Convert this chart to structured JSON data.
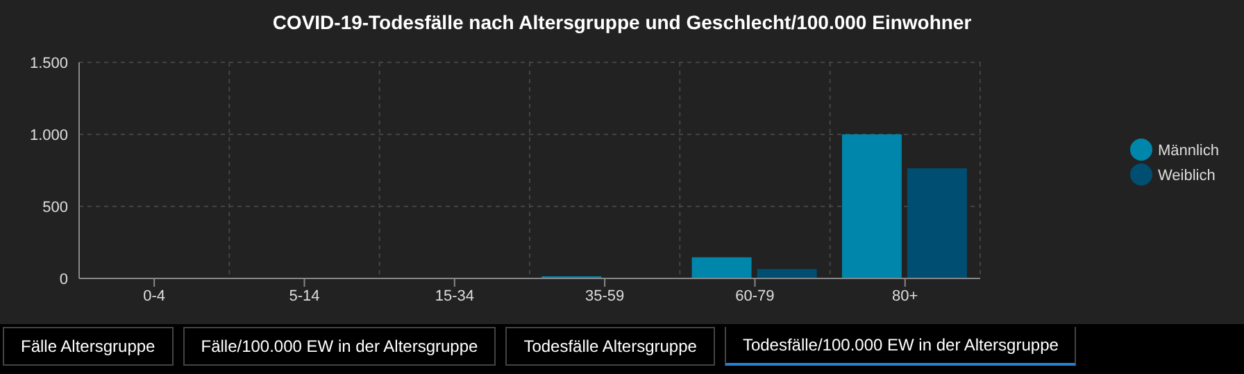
{
  "chart_data": {
    "type": "bar",
    "title": "COVID-19-Todesfälle nach Altersgruppe und Geschlecht/100.000 Einwohner",
    "categories": [
      "0-4",
      "5-14",
      "15-34",
      "35-59",
      "60-79",
      "80+"
    ],
    "series": [
      {
        "name": "Männlich",
        "color": "#0086ab",
        "values": [
          0,
          0,
          0,
          14,
          147,
          1000
        ]
      },
      {
        "name": "Weiblich",
        "color": "#004e72",
        "values": [
          0,
          0,
          0,
          0,
          65,
          764
        ]
      }
    ],
    "ylim": [
      0,
      1500
    ],
    "yticks": [
      {
        "value": 0,
        "label": "0"
      },
      {
        "value": 500,
        "label": "500"
      },
      {
        "value": 1000,
        "label": "1.000"
      },
      {
        "value": 1500,
        "label": "1.500"
      }
    ],
    "grid": true,
    "legend": "right",
    "annotations": [
      "Fälle Altersgruppe",
      "Fälle/100.000 EW in der Altersgruppe",
      "Todesfälle Altersgruppe",
      "Todesfälle/100.000 EW in der Altersgruppe"
    ]
  }
}
